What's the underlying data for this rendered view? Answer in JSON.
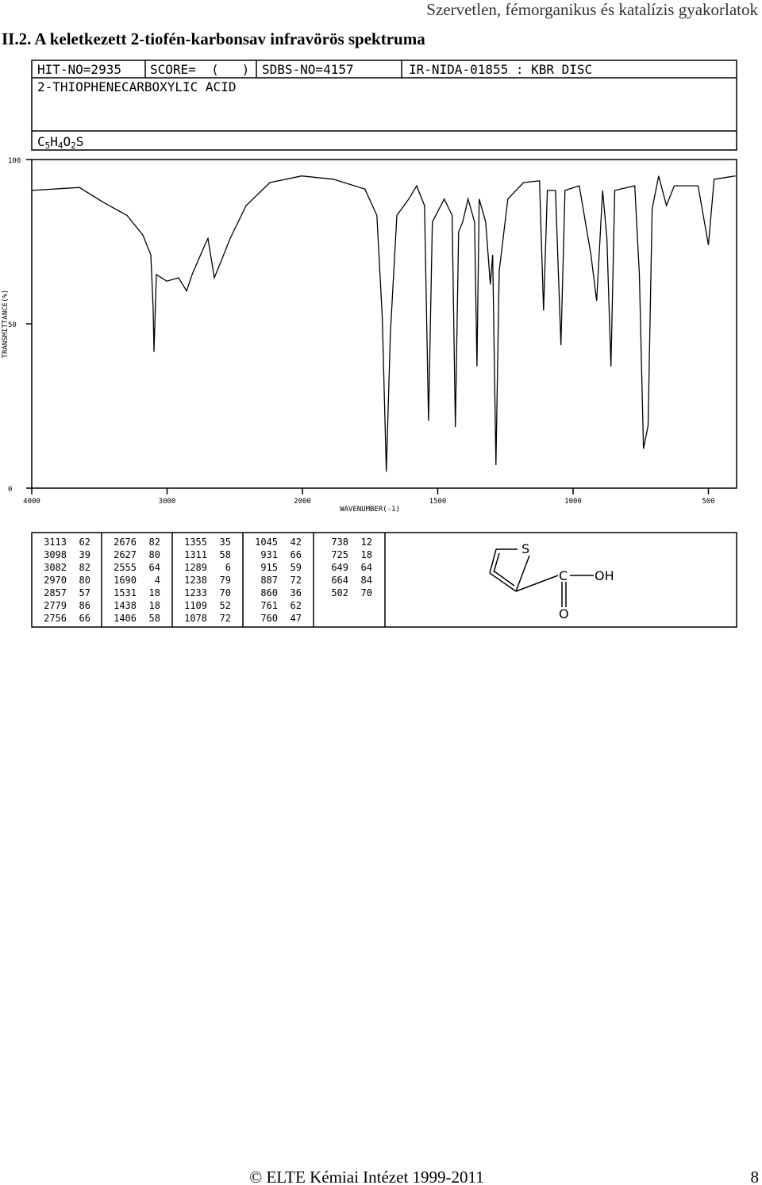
{
  "header": {
    "running_title": "Szervetlen, fémorganikus és katalízis gyakorlatok",
    "section_title": "II.2. A keletkezett 2-tiofén-karbonsav infravörös spektruma"
  },
  "info": {
    "hit_no": "HIT-NO=2935",
    "score": "SCORE=  (   )",
    "sdbs_no": "SDBS-NO=4157",
    "source": "IR-NIDA-01855 : KBR DISC",
    "name": "2-THIOPHENECARBOXYLIC ACID",
    "formula": [
      "C",
      "5",
      "H",
      "4",
      "O",
      "2",
      "S"
    ]
  },
  "chart_data": {
    "type": "line",
    "x_label": "WAVENUMBER(-1)",
    "y_label": "TRANSMITTANCE(%)",
    "color": "#000000",
    "x": [
      4000,
      3648,
      3472,
      3296,
      3179,
      3120,
      3103,
      3097,
      3079,
      3003,
      2915,
      2856,
      2815,
      2721,
      2698,
      2651,
      2592,
      2534,
      2416,
      2240,
      2006,
      1886,
      1769,
      1725,
      1705,
      1690,
      1675,
      1651,
      1607,
      1578,
      1549,
      1534,
      1520,
      1476,
      1447,
      1435,
      1423,
      1408,
      1388,
      1364,
      1355,
      1347,
      1323,
      1306,
      1297,
      1285,
      1273,
      1241,
      1183,
      1124,
      1109,
      1095,
      1065,
      1045,
      1030,
      977,
      934,
      913,
      891,
      875,
      860,
      846,
      772,
      755,
      740,
      723,
      708,
      684,
      655,
      626,
      538,
      500,
      479,
      400
    ],
    "values": [
      90.6,
      91.5,
      87,
      83,
      77,
      71,
      55,
      41.5,
      65,
      63,
      64,
      60,
      65,
      74,
      76,
      64,
      70,
      76,
      86,
      93,
      95,
      94,
      91,
      83,
      52,
      5,
      47,
      83,
      88,
      92,
      86,
      20.5,
      81,
      88,
      83,
      18.6,
      78,
      81,
      88,
      81,
      37,
      88,
      81,
      62,
      71,
      7,
      66,
      88,
      93,
      93.5,
      54,
      90.6,
      90.6,
      43.5,
      90.6,
      92,
      71,
      57,
      90.6,
      76,
      37,
      90.6,
      92,
      65,
      12,
      19,
      85,
      95,
      86,
      92,
      92,
      74,
      94,
      95
    ],
    "xlim": [
      4000,
      400
    ],
    "ylim": [
      0,
      100
    ],
    "xticks": [
      4000,
      3000,
      2000,
      1500,
      1000,
      500
    ],
    "yticks": [
      0,
      50,
      100
    ]
  },
  "peak_table": {
    "columns": [
      [
        [
          3113,
          62
        ],
        [
          3098,
          39
        ],
        [
          3082,
          82
        ],
        [
          2970,
          80
        ],
        [
          2857,
          57
        ],
        [
          2779,
          86
        ],
        [
          2756,
          66
        ]
      ],
      [
        [
          2676,
          82
        ],
        [
          2627,
          80
        ],
        [
          2555,
          64
        ],
        [
          1690,
          4
        ],
        [
          1531,
          18
        ],
        [
          1438,
          18
        ],
        [
          1406,
          58
        ]
      ],
      [
        [
          1355,
          35
        ],
        [
          1311,
          58
        ],
        [
          1289,
          6
        ],
        [
          1238,
          79
        ],
        [
          1233,
          70
        ],
        [
          1109,
          52
        ],
        [
          1078,
          72
        ]
      ],
      [
        [
          1045,
          42
        ],
        [
          931,
          66
        ],
        [
          915,
          59
        ],
        [
          887,
          72
        ],
        [
          860,
          36
        ],
        [
          761,
          62
        ],
        [
          760,
          47
        ]
      ],
      [
        [
          738,
          12
        ],
        [
          725,
          18
        ],
        [
          649,
          64
        ],
        [
          664,
          84
        ],
        [
          502,
          70
        ]
      ]
    ]
  },
  "structure": {
    "labels": [
      "S",
      "C",
      "OH",
      "O"
    ]
  },
  "footer": {
    "copyright": "© ELTE Kémiai Intézet 1999-2011",
    "page": "8"
  }
}
